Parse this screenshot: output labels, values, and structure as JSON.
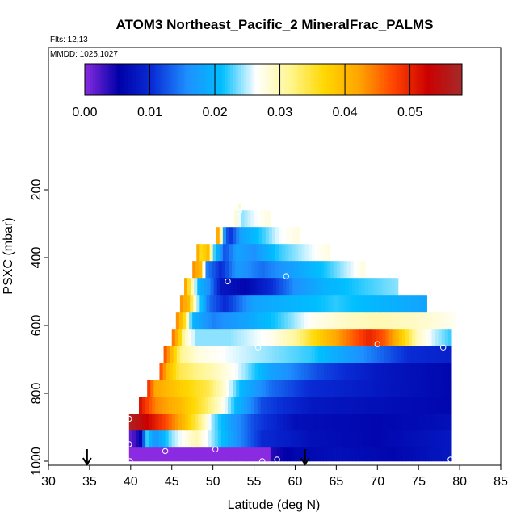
{
  "chart_data": {
    "type": "heatmap",
    "title": "ATOM3 Northeast_Pacific_2 MineralFrac_PALMS",
    "flights_label": "Flts: 12,13",
    "mmdd_label": "MMDD: 1025,1027",
    "xlabel": "Latitude (deg N)",
    "ylabel": "PSXC (mbar)",
    "xlim": [
      30,
      85
    ],
    "ylim": [
      1000,
      0
    ],
    "x_ticks": [
      30,
      35,
      40,
      45,
      50,
      55,
      60,
      65,
      70,
      75,
      80,
      85
    ],
    "y_ticks": [
      200,
      400,
      600,
      800,
      1000
    ],
    "colorbar": {
      "range": [
        0.0,
        0.058
      ],
      "ticks": [
        0.0,
        0.01,
        0.02,
        0.03,
        0.04,
        0.05
      ],
      "tick_labels": [
        "0.00",
        "0.01",
        "0.02",
        "0.03",
        "0.04",
        "0.05"
      ],
      "colors": [
        "#8a2be2",
        "#0000a8",
        "#0a2fd8",
        "#1e90ff",
        "#00bfff",
        "#ffffff",
        "#fff68f",
        "#ffd700",
        "#ffa500",
        "#ff4500",
        "#cc0000",
        "#a52a2a"
      ]
    },
    "rows": [
      {
        "p_top": 240,
        "p_bot": 260,
        "lat_start": 53.1,
        "lat_end": 53.4,
        "stops": [
          [
            53.1,
            0.029
          ]
        ]
      },
      {
        "p_top": 260,
        "p_bot": 310,
        "lat_start": 52.6,
        "lat_end": 57.0,
        "stops": [
          [
            52.6,
            0.03
          ],
          [
            53.5,
            0.024
          ],
          [
            55.0,
            0.026
          ],
          [
            57.0,
            0.028
          ]
        ]
      },
      {
        "p_top": 310,
        "p_bot": 360,
        "lat_start": 50.4,
        "lat_end": 60.5,
        "stops": [
          [
            50.4,
            0.045
          ],
          [
            50.8,
            0.038
          ],
          [
            51.3,
            0.018
          ],
          [
            52.0,
            0.01
          ],
          [
            53.5,
            0.018
          ],
          [
            56.0,
            0.022
          ],
          [
            58.0,
            0.026
          ],
          [
            60.5,
            0.028
          ]
        ]
      },
      {
        "p_top": 360,
        "p_bot": 410,
        "lat_start": 48.0,
        "lat_end": 64.2,
        "stops": [
          [
            48.0,
            0.045
          ],
          [
            48.5,
            0.036
          ],
          [
            49.5,
            0.04
          ],
          [
            50.0,
            0.024
          ],
          [
            51.5,
            0.012
          ],
          [
            53.0,
            0.018
          ],
          [
            55.0,
            0.016
          ],
          [
            58.0,
            0.022
          ],
          [
            62.0,
            0.026
          ],
          [
            64.2,
            0.028
          ]
        ]
      },
      {
        "p_top": 410,
        "p_bot": 460,
        "lat_start": 47.5,
        "lat_end": 68.5,
        "stops": [
          [
            47.5,
            0.044
          ],
          [
            48.5,
            0.04
          ],
          [
            49.3,
            0.015
          ],
          [
            51.0,
            0.01
          ],
          [
            53.0,
            0.017
          ],
          [
            56.0,
            0.014
          ],
          [
            60.0,
            0.018
          ],
          [
            64.0,
            0.022
          ],
          [
            68.5,
            0.028
          ]
        ]
      },
      {
        "p_top": 460,
        "p_bot": 510,
        "lat_start": 46.5,
        "lat_end": 72.5,
        "stops": [
          [
            46.5,
            0.045
          ],
          [
            47.3,
            0.032
          ],
          [
            48.3,
            0.02
          ],
          [
            49.5,
            0.016
          ],
          [
            51.0,
            0.008
          ],
          [
            54.0,
            0.006
          ],
          [
            57.0,
            0.01
          ],
          [
            60.0,
            0.016
          ],
          [
            64.0,
            0.02
          ],
          [
            68.0,
            0.022
          ],
          [
            72.5,
            0.024
          ]
        ]
      },
      {
        "p_top": 510,
        "p_bot": 560,
        "lat_start": 46.0,
        "lat_end": 76.0,
        "stops": [
          [
            46.0,
            0.044
          ],
          [
            47.0,
            0.04
          ],
          [
            48.0,
            0.026
          ],
          [
            49.5,
            0.014
          ],
          [
            51.5,
            0.01
          ],
          [
            55.0,
            0.018
          ],
          [
            60.0,
            0.02
          ],
          [
            65.0,
            0.022
          ],
          [
            70.0,
            0.02
          ],
          [
            76.0,
            0.018
          ]
        ]
      },
      {
        "p_top": 560,
        "p_bot": 610,
        "lat_start": 45.5,
        "lat_end": 79.5,
        "stops": [
          [
            45.5,
            0.045
          ],
          [
            46.5,
            0.036
          ],
          [
            47.5,
            0.02
          ],
          [
            50.0,
            0.015
          ],
          [
            54.0,
            0.018
          ],
          [
            58.0,
            0.022
          ],
          [
            62.0,
            0.027
          ],
          [
            66.0,
            0.029
          ],
          [
            70.0,
            0.03
          ],
          [
            75.0,
            0.029
          ],
          [
            79.5,
            0.027
          ]
        ]
      },
      {
        "p_top": 610,
        "p_bot": 660,
        "lat_start": 45.0,
        "lat_end": 79.0,
        "stops": [
          [
            45.0,
            0.046
          ],
          [
            45.8,
            0.04
          ],
          [
            46.5,
            0.03
          ],
          [
            48.0,
            0.024
          ],
          [
            52.0,
            0.024
          ],
          [
            57.0,
            0.027
          ],
          [
            60.0,
            0.031
          ],
          [
            63.0,
            0.038
          ],
          [
            66.0,
            0.044
          ],
          [
            69.0,
            0.05
          ],
          [
            71.0,
            0.046
          ],
          [
            73.0,
            0.038
          ],
          [
            75.0,
            0.029
          ],
          [
            77.0,
            0.025
          ],
          [
            79.0,
            0.022
          ]
        ]
      },
      {
        "p_top": 660,
        "p_bot": 710,
        "lat_start": 44.0,
        "lat_end": 79.0,
        "stops": [
          [
            44.0,
            0.048
          ],
          [
            45.0,
            0.04
          ],
          [
            46.0,
            0.032
          ],
          [
            48.0,
            0.028
          ],
          [
            52.0,
            0.026
          ],
          [
            57.0,
            0.024
          ],
          [
            62.0,
            0.022
          ],
          [
            68.0,
            0.016
          ],
          [
            74.0,
            0.01
          ],
          [
            79.0,
            0.009
          ]
        ]
      },
      {
        "p_top": 710,
        "p_bot": 760,
        "lat_start": 43.5,
        "lat_end": 79.0,
        "stops": [
          [
            43.5,
            0.048
          ],
          [
            44.5,
            0.04
          ],
          [
            46.0,
            0.034
          ],
          [
            50.0,
            0.03
          ],
          [
            53.0,
            0.026
          ],
          [
            57.0,
            0.018
          ],
          [
            63.0,
            0.012
          ],
          [
            70.0,
            0.008
          ],
          [
            79.0,
            0.006
          ]
        ]
      },
      {
        "p_top": 760,
        "p_bot": 810,
        "lat_start": 42.0,
        "lat_end": 79.0,
        "stops": [
          [
            42.0,
            0.05
          ],
          [
            43.0,
            0.042
          ],
          [
            46.0,
            0.038
          ],
          [
            49.5,
            0.034
          ],
          [
            51.5,
            0.028
          ],
          [
            53.5,
            0.02
          ],
          [
            57.0,
            0.014
          ],
          [
            62.0,
            0.01
          ],
          [
            70.0,
            0.008
          ],
          [
            79.0,
            0.006
          ]
        ]
      },
      {
        "p_top": 810,
        "p_bot": 860,
        "lat_start": 41.0,
        "lat_end": 79.0,
        "stops": [
          [
            41.0,
            0.052
          ],
          [
            43.0,
            0.044
          ],
          [
            46.0,
            0.04
          ],
          [
            49.0,
            0.034
          ],
          [
            51.0,
            0.028
          ],
          [
            53.0,
            0.02
          ],
          [
            56.0,
            0.012
          ],
          [
            62.0,
            0.008
          ],
          [
            70.0,
            0.007
          ],
          [
            79.0,
            0.006
          ]
        ]
      },
      {
        "p_top": 860,
        "p_bot": 910,
        "lat_start": 39.8,
        "lat_end": 79.0,
        "stops": [
          [
            39.8,
            0.057
          ],
          [
            41.5,
            0.054
          ],
          [
            44.0,
            0.048
          ],
          [
            46.5,
            0.04
          ],
          [
            48.5,
            0.032
          ],
          [
            50.0,
            0.024
          ],
          [
            52.0,
            0.018
          ],
          [
            55.0,
            0.012
          ],
          [
            60.0,
            0.007
          ],
          [
            70.0,
            0.006
          ],
          [
            79.0,
            0.007
          ]
        ]
      },
      {
        "p_top": 910,
        "p_bot": 960,
        "lat_start": 39.8,
        "lat_end": 79.0,
        "stops": [
          [
            39.8,
            0.001
          ],
          [
            40.5,
            0.003
          ],
          [
            41.3,
            0.006
          ],
          [
            42.0,
            0.022
          ],
          [
            43.0,
            0.016
          ],
          [
            45.0,
            0.024
          ],
          [
            48.0,
            0.03
          ],
          [
            50.0,
            0.024
          ],
          [
            53.0,
            0.016
          ],
          [
            56.0,
            0.01
          ],
          [
            62.0,
            0.007
          ],
          [
            70.0,
            0.006
          ],
          [
            79.0,
            0.008
          ]
        ]
      },
      {
        "p_top": 960,
        "p_bot": 1000,
        "lat_start": 39.8,
        "lat_end": 79.0,
        "stops": [
          [
            39.8,
            0.0
          ],
          [
            57.0,
            0.0
          ],
          [
            57.2,
            0.004
          ],
          [
            60.0,
            0.006
          ],
          [
            65.0,
            0.007
          ],
          [
            72.0,
            0.006
          ],
          [
            79.0,
            0.008
          ]
        ]
      }
    ],
    "sample_points": [
      {
        "lat": 53.2,
        "p": 265
      },
      {
        "lat": 51.8,
        "p": 470
      },
      {
        "lat": 58.9,
        "p": 455
      },
      {
        "lat": 55.5,
        "p": 665
      },
      {
        "lat": 70.0,
        "p": 655
      },
      {
        "lat": 78.0,
        "p": 665
      },
      {
        "lat": 39.8,
        "p": 875
      },
      {
        "lat": 39.8,
        "p": 950
      },
      {
        "lat": 44.2,
        "p": 970
      },
      {
        "lat": 50.3,
        "p": 965
      },
      {
        "lat": 39.9,
        "p": 1000
      },
      {
        "lat": 56.0,
        "p": 1000
      },
      {
        "lat": 57.8,
        "p": 995
      },
      {
        "lat": 78.9,
        "p": 995
      }
    ],
    "arrows": [
      {
        "lat": 34.7
      },
      {
        "lat": 61.2
      }
    ]
  }
}
